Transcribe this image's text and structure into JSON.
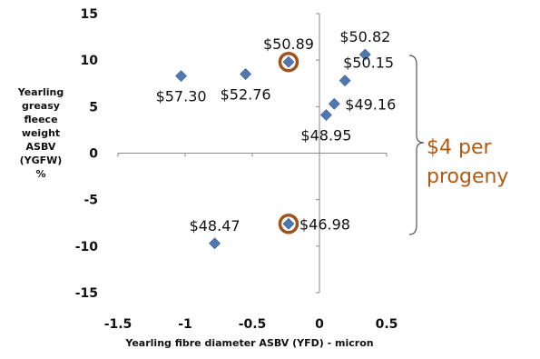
{
  "chart_data": {
    "type": "scatter",
    "title": "",
    "xlabel": "Yearling fibre diameter ASBV (YFD) - micron",
    "ylabel_lines": [
      "Yearling",
      "greasy",
      "fleece",
      "weight",
      "ASBV",
      "(YGFW)",
      "%"
    ],
    "xlim": [
      -1.5,
      0.5
    ],
    "ylim": [
      -15,
      15
    ],
    "xticks": [
      "-1.5",
      "-1",
      "-0.5",
      "0",
      "0.5"
    ],
    "yticks": [
      "15",
      "10",
      "5",
      "0",
      "-5",
      "-10",
      "-15"
    ],
    "grid": false,
    "marker_color": "#4f77b0",
    "highlight_color": "#a0521a",
    "points": [
      {
        "x": -1.03,
        "y": 8.3,
        "label": "$57.30",
        "label_pos": "below",
        "highlight": false
      },
      {
        "x": -0.55,
        "y": 8.5,
        "label": "$52.76",
        "label_pos": "below",
        "highlight": false
      },
      {
        "x": -0.23,
        "y": 9.8,
        "label": "$50.89",
        "label_pos": "above",
        "highlight": true
      },
      {
        "x": 0.34,
        "y": 10.6,
        "label": "$50.82",
        "label_pos": "above",
        "highlight": false
      },
      {
        "x": 0.19,
        "y": 7.8,
        "label": "$50.15",
        "label_pos": "upper-right",
        "highlight": false
      },
      {
        "x": 0.11,
        "y": 5.3,
        "label": "$49.16",
        "label_pos": "right",
        "highlight": false
      },
      {
        "x": 0.05,
        "y": 4.1,
        "label": "$48.95",
        "label_pos": "below",
        "highlight": false
      },
      {
        "x": -0.23,
        "y": -7.6,
        "label": "$46.98",
        "label_pos": "right",
        "highlight": true
      },
      {
        "x": -0.78,
        "y": -9.7,
        "label": "$48.47",
        "label_pos": "above",
        "highlight": false
      }
    ]
  },
  "annotation": {
    "lines": [
      "$4 per",
      "progeny"
    ],
    "color": "#b35a12"
  }
}
